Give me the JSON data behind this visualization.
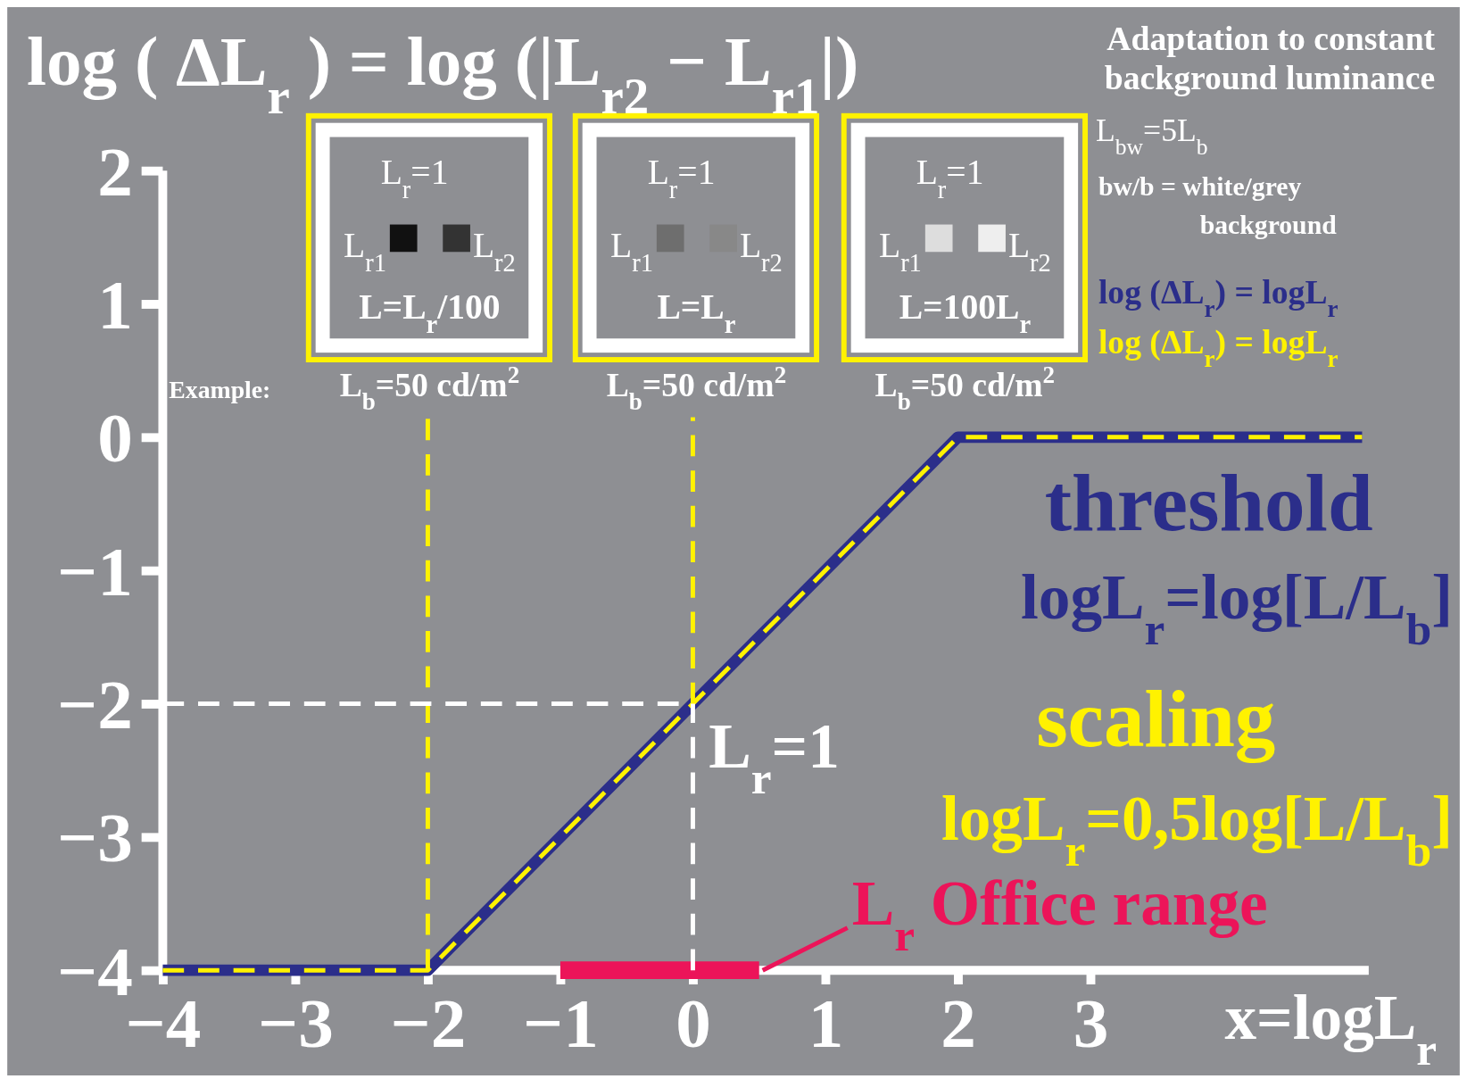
{
  "chart_data": {
    "type": "line",
    "title": "log ( ΔL$_{r}$ ) = log (|L$_{r2}$ − L$_{r1}$|)",
    "subtitle": "Adaptation to constant background luminance",
    "xlabel": "x=logL$_{r}$",
    "xlim": [
      -4,
      5.1
    ],
    "ylim": [
      -4,
      2
    ],
    "xticks": [
      -4,
      -3,
      -2,
      -1,
      0,
      1,
      2,
      3
    ],
    "yticks": [
      -4,
      -3,
      -2,
      -1,
      0,
      1,
      2
    ],
    "grid": false,
    "legend": "right",
    "marker": "none",
    "series": [
      {
        "name": "log (ΔL$_{r}$) = logL$_{r}$",
        "color": "#2b2e8a",
        "x": [
          -4,
          -2,
          2,
          5.05
        ],
        "values": [
          -4,
          -4,
          0,
          0
        ]
      },
      {
        "name": "log (ΔL$_{r}$) = logL$_{r}$",
        "color": "#fff200",
        "x": [
          -4,
          -2,
          2,
          5.05
        ],
        "values": [
          -4,
          -4,
          0,
          0
        ],
        "line_style": "dashed"
      },
      {
        "color": "#ec1459",
        "x": [
          -1,
          0.5
        ],
        "values": [
          -4,
          -4
        ]
      },
      {
        "color": "#fff200",
        "x": [
          -2,
          -2
        ],
        "values": [
          -4,
          0.15
        ],
        "line_style": "dashed"
      },
      {
        "color": "#fff200",
        "x": [
          0,
          0
        ],
        "values": [
          -2,
          0.15
        ],
        "line_style": "dashed"
      },
      {
        "color": "#ffffff",
        "x": [
          0,
          0
        ],
        "values": [
          -4,
          -2
        ],
        "line_style": "dashed"
      },
      {
        "color": "#ffffff",
        "x": [
          -4,
          0
        ],
        "values": [
          -2,
          -2
        ],
        "line_style": "dashed"
      },
      {
        "color": "#ffffff",
        "x": [
          -4,
          5.1
        ],
        "values": [
          -4,
          -4
        ]
      },
      {
        "color": "#ffffff",
        "x": [
          -4,
          -4
        ],
        "values": [
          -4,
          2
        ]
      }
    ],
    "annotations": [
      "Example:",
      "L$_{r}$=1",
      "L$_{r1}$",
      "L$_{r2}$",
      "L=L$_{r}$/100",
      "L$_{r}$=1",
      "L$_{r1}$",
      "L$_{r2}$",
      "L=L$_{r}$",
      "L$_{r}$=1",
      "L$_{r1}$",
      "L$_{r2}$",
      "L=100L$_{r}$",
      "L$_{b}$=50 cd/m$^{2}$",
      "L$_{b}$=50 cd/m$^{2}$",
      "L$_{b}$=50 cd/m$^{2}$",
      "L$_{bw}$=5L$_{b}$",
      "bw/b = white/grey",
      "background",
      "threshold",
      "logL$_{r}$=log[L/L$_{b}$]",
      "scaling",
      "logL$_{r}$=0,5log[L/L$_{b}$]",
      {
        "text": "L$_{r}$=1",
        "x": 0,
        "y": -2
      },
      {
        "text": "L$_{r}$ Office range",
        "x": 0.5,
        "y": -4
      }
    ]
  }
}
